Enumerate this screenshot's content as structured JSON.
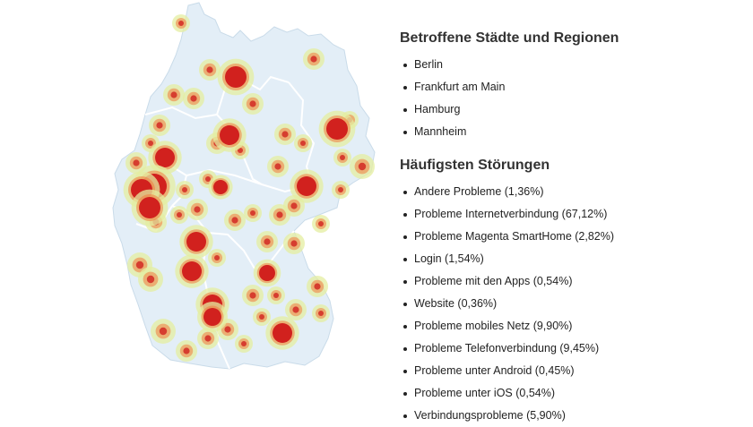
{
  "sidebar": {
    "cities_title": "Betroffene Städte und Regionen",
    "cities": [
      "Berlin",
      "Frankfurt am Main",
      "Hamburg",
      "Mannheim"
    ],
    "problems_title": "Häufigsten Störungen",
    "problems": [
      "Andere Probleme (1,36%)",
      "Probleme Internetverbindung (67,12%)",
      "Probleme Magenta SmartHome (2,82%)",
      "Login (1,54%)",
      "Probleme mit den Apps (0,54%)",
      "Website (0,36%)",
      "Probleme mobiles Netz (9,90%)",
      "Probleme Telefonverbindung (9,45%)",
      "Probleme unter Android (0,45%)",
      "Probleme unter iOS (0,54%)",
      "Verbindungsprobleme (5,90%)"
    ]
  },
  "map": {
    "land_color": "#e3eef7",
    "border_color": "#ffffff",
    "hotspot_color": "#d1211e",
    "heat_color": "#f07a3c",
    "halo_color": "#e4eda0"
  }
}
